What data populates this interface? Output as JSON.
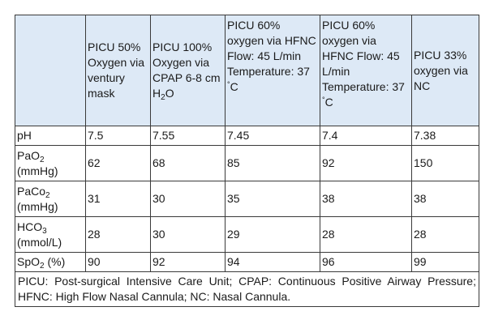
{
  "headers": {
    "c0": "",
    "c1": "PICU 50% Oxygen via ventury mask",
    "c2a": "PICU 100% Oxygen via CPAP 6-8 cm H",
    "c2sub": "2",
    "c2b": "O",
    "c3a": "PICU 60% oxygen via HFNC Flow: 45 L/min Temperature: 37 ",
    "c3sup": "°",
    "c3b": "C",
    "c4a": "PICU 60% oxygen via HFNC Flow: 45 L/min Temperature: 37 ",
    "c4sup": "°",
    "c4b": "C",
    "c5": "PICU 33% oxygen via NC"
  },
  "rows": [
    {
      "label_a": "pH",
      "label_sub": "",
      "label_b": "",
      "label_unit": "",
      "values": [
        "7.5",
        "7.55",
        "7.45",
        "7.4",
        "7.38"
      ]
    },
    {
      "label_a": "PaO",
      "label_sub": "2",
      "label_b": "",
      "label_unit": "(mmHg)",
      "values": [
        "62",
        "68",
        "85",
        "92",
        "150"
      ]
    },
    {
      "label_a": "PaCo",
      "label_sub": "2",
      "label_b": "",
      "label_unit": "(mmHg)",
      "values": [
        "31",
        "30",
        "35",
        "38",
        "38"
      ]
    },
    {
      "label_a": "HCO",
      "label_sub": "3",
      "label_b": "",
      "label_unit": "(mmol/L)",
      "values": [
        "28",
        "30",
        "29",
        "28",
        "28"
      ]
    },
    {
      "label_a": "SpO",
      "label_sub": "2",
      "label_b": " (%)",
      "label_unit": "",
      "values": [
        "90",
        "92",
        "94",
        "96",
        "99"
      ]
    }
  ],
  "footnote": "PICU: Post-surgical Intensive Care Unit; CPAP: Continuous Positive Airway Pressure; HFNC: High Flow Nasal Cannula; NC: Nasal Cannula."
}
